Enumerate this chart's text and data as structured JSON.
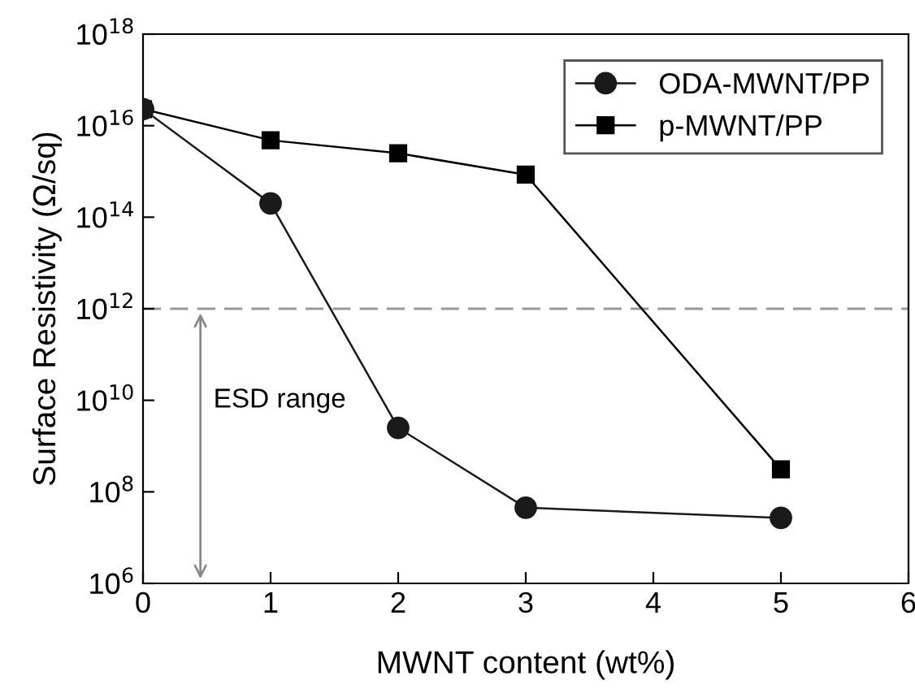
{
  "chart_data": {
    "type": "line",
    "xlabel": "MWNT content (wt%)",
    "ylabel": "Surface Resistivity (Ω/sq)",
    "log": "y",
    "x": [
      0,
      1,
      2,
      3,
      5
    ],
    "series": [
      {
        "name": "ODA-MWNT/PP",
        "color": "#1a1a1a",
        "marker": "circle",
        "values": [
          2.3e+16,
          200000000000000.0,
          2500000000.0,
          45000000.0,
          27000000.0
        ]
      },
      {
        "name": "p-MWNT/PP",
        "color": "#000000",
        "marker": "square",
        "values": [
          2.3e+16,
          4800000000000000.0,
          2500000000000000.0,
          850000000000000.0,
          310000000.0
        ]
      }
    ],
    "xlim": [
      0,
      6
    ],
    "xticks": [
      0,
      1,
      2,
      3,
      4,
      5,
      6
    ],
    "ylim": [
      1000000.0,
      1e+18
    ],
    "yticks": [
      {
        "value": 1000000.0,
        "label": "10$^{6}$"
      },
      {
        "value": 100000000.0,
        "label": "10$^{8}$"
      },
      {
        "value": 10000000000.0,
        "label": "10$^{10}$"
      },
      {
        "value": 1000000000000.0,
        "label": "10$^{12}$"
      },
      {
        "value": 100000000000000.0,
        "label": "10$^{14}$"
      },
      {
        "value": 1e+16,
        "label": "10$^{16}$"
      },
      {
        "value": 1e+18,
        "label": "10$^{18}$"
      }
    ],
    "ref_lines": [
      {
        "axis": "y",
        "value": 1000000000000.0,
        "color": "#999999",
        "line_style": "dashed"
      }
    ],
    "annotations": [
      "ESD range"
    ],
    "grid": false,
    "legend": "top right",
    "line_style": "solid"
  }
}
